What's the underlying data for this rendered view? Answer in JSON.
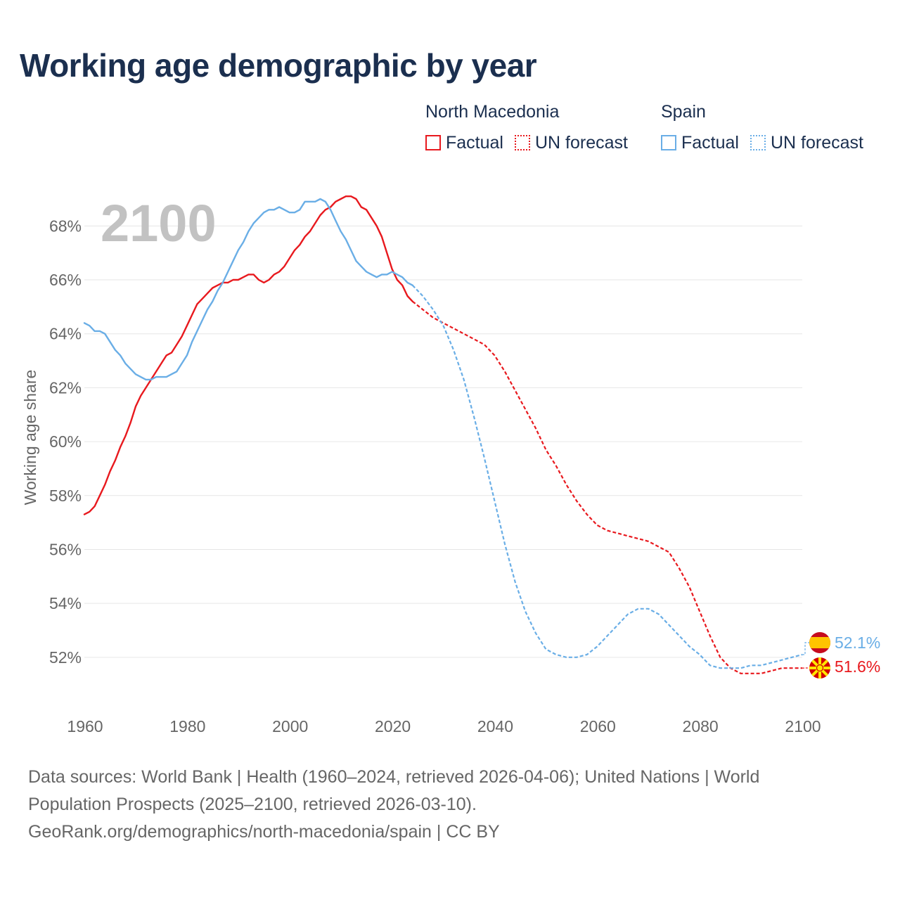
{
  "title": "Working age demographic by year",
  "legend": [
    {
      "country": "North Macedonia",
      "color": "#e8191e",
      "factual_label": "Factual",
      "forecast_label": "UN forecast"
    },
    {
      "country": "Spain",
      "color": "#6aaee6",
      "factual_label": "Factual",
      "forecast_label": "UN forecast"
    }
  ],
  "year_label": "2100",
  "footer": {
    "line1": "Data sources: World Bank | Health (1960–2024, retrieved 2026-04-06); United Nations | World",
    "line2": "Population Prospects (2025–2100, retrieved 2026-03-10).",
    "line3": "GeoRank.org/demographics/north-macedonia/spain | CC BY"
  },
  "chart_data": {
    "type": "line",
    "title": "Working age demographic by year",
    "ylabel": "Working age share",
    "xlabel": "",
    "xlim": [
      1960,
      2100
    ],
    "ylim": [
      50.3,
      69.6
    ],
    "x_ticks": [
      "1960",
      "1980",
      "2000",
      "2020",
      "2040",
      "2060",
      "2080",
      "2100"
    ],
    "y_ticks": [
      "52%",
      "54%",
      "56%",
      "58%",
      "60%",
      "62%",
      "64%",
      "66%",
      "68%"
    ],
    "grid": true,
    "series": [
      {
        "name": "North Macedonia",
        "color": "#e8191e",
        "end_label": "51.6%",
        "factual": {
          "x": [
            1960,
            1961,
            1962,
            1963,
            1964,
            1965,
            1966,
            1967,
            1968,
            1969,
            1970,
            1971,
            1972,
            1973,
            1974,
            1975,
            1976,
            1977,
            1978,
            1979,
            1980,
            1981,
            1982,
            1983,
            1984,
            1985,
            1986,
            1987,
            1988,
            1989,
            1990,
            1991,
            1992,
            1993,
            1994,
            1995,
            1996,
            1997,
            1998,
            1999,
            2000,
            2001,
            2002,
            2003,
            2004,
            2005,
            2006,
            2007,
            2008,
            2009,
            2010,
            2011,
            2012,
            2013,
            2014,
            2015,
            2016,
            2017,
            2018,
            2019,
            2020,
            2021,
            2022,
            2023,
            2024
          ],
          "y": [
            57.3,
            57.4,
            57.6,
            58.0,
            58.4,
            58.9,
            59.3,
            59.8,
            60.2,
            60.7,
            61.3,
            61.7,
            62.0,
            62.3,
            62.6,
            62.9,
            63.2,
            63.3,
            63.6,
            63.9,
            64.3,
            64.7,
            65.1,
            65.3,
            65.5,
            65.7,
            65.8,
            65.9,
            65.9,
            66.0,
            66.0,
            66.1,
            66.2,
            66.2,
            66.0,
            65.9,
            66.0,
            66.2,
            66.3,
            66.5,
            66.8,
            67.1,
            67.3,
            67.6,
            67.8,
            68.1,
            68.4,
            68.6,
            68.7,
            68.9,
            69.0,
            69.1,
            69.1,
            69.0,
            68.7,
            68.6,
            68.3,
            68.0,
            67.6,
            67.0,
            66.4,
            66.0,
            65.8,
            65.4,
            65.2
          ],
          "style": "solid"
        },
        "forecast": {
          "x": [
            2024,
            2026,
            2028,
            2030,
            2032,
            2034,
            2036,
            2038,
            2040,
            2042,
            2044,
            2046,
            2048,
            2050,
            2052,
            2054,
            2056,
            2058,
            2060,
            2062,
            2064,
            2066,
            2068,
            2070,
            2072,
            2074,
            2076,
            2078,
            2080,
            2082,
            2084,
            2086,
            2088,
            2090,
            2092,
            2094,
            2096,
            2098,
            2100
          ],
          "y": [
            65.2,
            64.9,
            64.6,
            64.4,
            64.2,
            64.0,
            63.8,
            63.6,
            63.2,
            62.6,
            61.9,
            61.2,
            60.5,
            59.7,
            59.1,
            58.4,
            57.8,
            57.3,
            56.9,
            56.7,
            56.6,
            56.5,
            56.4,
            56.3,
            56.1,
            55.9,
            55.3,
            54.6,
            53.7,
            52.8,
            52.0,
            51.6,
            51.4,
            51.4,
            51.4,
            51.5,
            51.6,
            51.6,
            51.6
          ],
          "style": "dashed"
        }
      },
      {
        "name": "Spain",
        "color": "#6aaee6",
        "end_label": "52.1%",
        "factual": {
          "x": [
            1960,
            1961,
            1962,
            1963,
            1964,
            1965,
            1966,
            1967,
            1968,
            1969,
            1970,
            1971,
            1972,
            1973,
            1974,
            1975,
            1976,
            1977,
            1978,
            1979,
            1980,
            1981,
            1982,
            1983,
            1984,
            1985,
            1986,
            1987,
            1988,
            1989,
            1990,
            1991,
            1992,
            1993,
            1994,
            1995,
            1996,
            1997,
            1998,
            1999,
            2000,
            2001,
            2002,
            2003,
            2004,
            2005,
            2006,
            2007,
            2008,
            2009,
            2010,
            2011,
            2012,
            2013,
            2014,
            2015,
            2016,
            2017,
            2018,
            2019,
            2020,
            2021,
            2022,
            2023,
            2024
          ],
          "y": [
            64.4,
            64.3,
            64.1,
            64.1,
            64.0,
            63.7,
            63.4,
            63.2,
            62.9,
            62.7,
            62.5,
            62.4,
            62.3,
            62.3,
            62.4,
            62.4,
            62.4,
            62.5,
            62.6,
            62.9,
            63.2,
            63.7,
            64.1,
            64.5,
            64.9,
            65.2,
            65.6,
            65.9,
            66.3,
            66.7,
            67.1,
            67.4,
            67.8,
            68.1,
            68.3,
            68.5,
            68.6,
            68.6,
            68.7,
            68.6,
            68.5,
            68.5,
            68.6,
            68.9,
            68.9,
            68.9,
            69.0,
            68.9,
            68.6,
            68.2,
            67.8,
            67.5,
            67.1,
            66.7,
            66.5,
            66.3,
            66.2,
            66.1,
            66.2,
            66.2,
            66.3,
            66.2,
            66.1,
            65.9,
            65.8
          ],
          "style": "solid"
        },
        "forecast": {
          "x": [
            2024,
            2026,
            2028,
            2030,
            2032,
            2034,
            2036,
            2038,
            2040,
            2042,
            2044,
            2046,
            2048,
            2050,
            2052,
            2054,
            2056,
            2058,
            2060,
            2062,
            2064,
            2066,
            2068,
            2070,
            2072,
            2074,
            2076,
            2078,
            2080,
            2082,
            2084,
            2086,
            2088,
            2090,
            2092,
            2094,
            2096,
            2098,
            2100
          ],
          "y": [
            65.8,
            65.4,
            64.9,
            64.3,
            63.4,
            62.3,
            60.9,
            59.4,
            57.8,
            56.2,
            54.8,
            53.7,
            52.9,
            52.3,
            52.1,
            52.0,
            52.0,
            52.1,
            52.4,
            52.8,
            53.2,
            53.6,
            53.8,
            53.8,
            53.6,
            53.2,
            52.8,
            52.4,
            52.1,
            51.7,
            51.6,
            51.6,
            51.6,
            51.7,
            51.7,
            51.8,
            51.9,
            52.0,
            52.1
          ],
          "style": "dashed"
        }
      }
    ]
  }
}
